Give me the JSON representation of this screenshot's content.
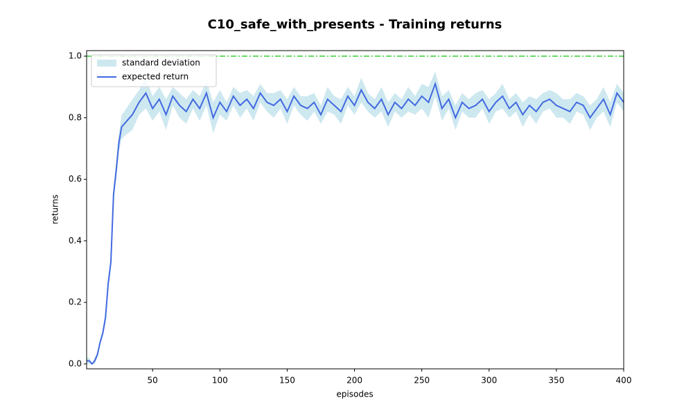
{
  "chart_data": {
    "type": "line",
    "title": "C10_safe_with_presents - Training returns",
    "xlabel": "episodes",
    "ylabel": "returns",
    "x": [
      1,
      3,
      5,
      7,
      9,
      11,
      13,
      15,
      17,
      19,
      21,
      23,
      25,
      27,
      29,
      35,
      40,
      45,
      50,
      55,
      60,
      65,
      70,
      75,
      80,
      85,
      90,
      95,
      100,
      105,
      110,
      115,
      120,
      125,
      130,
      135,
      140,
      145,
      150,
      155,
      160,
      165,
      170,
      175,
      180,
      185,
      190,
      195,
      200,
      205,
      210,
      215,
      220,
      225,
      230,
      235,
      240,
      245,
      250,
      255,
      260,
      265,
      270,
      275,
      280,
      285,
      290,
      295,
      300,
      305,
      310,
      315,
      320,
      325,
      330,
      335,
      340,
      345,
      350,
      355,
      360,
      365,
      370,
      375,
      380,
      385,
      390,
      395,
      400
    ],
    "series": [
      {
        "name": "expected return",
        "color": "#4169e1",
        "values": [
          0.01,
          0.01,
          0.0,
          0.01,
          0.03,
          0.07,
          0.1,
          0.15,
          0.26,
          0.33,
          0.55,
          0.63,
          0.72,
          0.77,
          0.78,
          0.81,
          0.85,
          0.88,
          0.83,
          0.86,
          0.81,
          0.87,
          0.84,
          0.82,
          0.86,
          0.83,
          0.88,
          0.8,
          0.85,
          0.82,
          0.87,
          0.84,
          0.86,
          0.83,
          0.88,
          0.85,
          0.84,
          0.86,
          0.82,
          0.87,
          0.84,
          0.83,
          0.85,
          0.81,
          0.86,
          0.84,
          0.82,
          0.87,
          0.84,
          0.89,
          0.85,
          0.83,
          0.86,
          0.81,
          0.85,
          0.83,
          0.86,
          0.84,
          0.87,
          0.85,
          0.91,
          0.83,
          0.86,
          0.8,
          0.85,
          0.83,
          0.84,
          0.86,
          0.82,
          0.85,
          0.87,
          0.83,
          0.85,
          0.81,
          0.84,
          0.82,
          0.85,
          0.86,
          0.84,
          0.83,
          0.82,
          0.85,
          0.84,
          0.8,
          0.83,
          0.86,
          0.81,
          0.88,
          0.85
        ],
        "band": {
          "name": "standard deviation",
          "color": "#add8e6"
        },
        "std": [
          0.01,
          0.01,
          0.0,
          0.01,
          0.01,
          0.01,
          0.01,
          0.02,
          0.02,
          0.02,
          0.02,
          0.03,
          0.03,
          0.04,
          0.04,
          0.05,
          0.04,
          0.05,
          0.04,
          0.04,
          0.05,
          0.03,
          0.04,
          0.04,
          0.03,
          0.04,
          0.04,
          0.05,
          0.04,
          0.03,
          0.03,
          0.04,
          0.03,
          0.04,
          0.03,
          0.03,
          0.04,
          0.03,
          0.04,
          0.03,
          0.03,
          0.04,
          0.03,
          0.03,
          0.04,
          0.03,
          0.04,
          0.03,
          0.03,
          0.04,
          0.03,
          0.03,
          0.04,
          0.04,
          0.03,
          0.03,
          0.04,
          0.03,
          0.04,
          0.05,
          0.04,
          0.04,
          0.03,
          0.04,
          0.03,
          0.03,
          0.04,
          0.03,
          0.04,
          0.03,
          0.04,
          0.03,
          0.03,
          0.04,
          0.03,
          0.04,
          0.03,
          0.03,
          0.04,
          0.03,
          0.04,
          0.03,
          0.03,
          0.04,
          0.03,
          0.04,
          0.04,
          0.03,
          0.03
        ]
      }
    ],
    "reference_line": {
      "value": 1.0,
      "color": "#32cd32"
    },
    "xlim": [
      1,
      400
    ],
    "ylim": [
      -0.016,
      1.018
    ],
    "xticks": [
      50,
      100,
      150,
      200,
      250,
      300,
      350,
      400
    ],
    "yticks": [
      {
        "value": 0,
        "label": "0.0"
      },
      {
        "value": 0.2,
        "label": "0.2"
      },
      {
        "value": 0.4,
        "label": "0.4"
      },
      {
        "value": 0.6,
        "label": "0.6"
      },
      {
        "value": 0.8,
        "label": "0.8"
      },
      {
        "value": 1.0,
        "label": "1.0"
      }
    ],
    "legend": "upper left"
  }
}
